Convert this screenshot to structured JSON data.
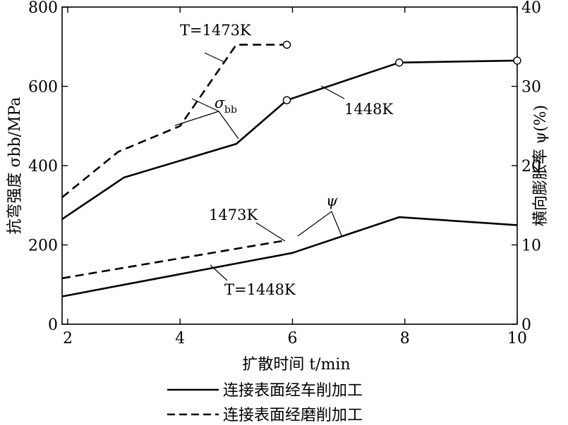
{
  "chart_data": {
    "type": "line",
    "title": "",
    "xlabel": "扩散时间 t/min",
    "ylabel_left": "抗弯强度 σbb/MPa",
    "ylabel_right": "横向膨胀率 ψ(%)",
    "xlim": [
      1.9,
      10
    ],
    "ylim_left": [
      0,
      800
    ],
    "ylim_right": [
      0,
      40
    ],
    "x_ticks": [
      2,
      4,
      6,
      8,
      10
    ],
    "y_ticks_left": [
      0,
      200,
      400,
      600,
      800
    ],
    "y_ticks_right": [
      0,
      10,
      20,
      30,
      40
    ],
    "grid": false,
    "legend_position": "bottom",
    "legend": [
      {
        "label": "连接表面经车削加工",
        "style": "solid"
      },
      {
        "label": "连接表面经磨削加工",
        "style": "dashed"
      }
    ],
    "series": [
      {
        "label": "T=1448K",
        "quantity": "σbb",
        "axis": "left",
        "style": "solid",
        "end_marker": "open-circle",
        "x": [
          1.9,
          3.0,
          5.0,
          5.9,
          7.9,
          10
        ],
        "y": [
          265,
          370,
          455,
          565,
          660,
          665
        ]
      },
      {
        "label": "T=1473K",
        "quantity": "σbb",
        "axis": "left",
        "style": "dashed",
        "end_marker": "open-circle",
        "x": [
          1.9,
          2.9,
          4.0,
          5.0,
          5.9
        ],
        "y": [
          320,
          435,
          500,
          705,
          705
        ]
      },
      {
        "label": "T=1448K",
        "quantity": "ψ",
        "axis": "right",
        "style": "solid",
        "x": [
          1.9,
          6.0,
          7.9,
          10
        ],
        "y": [
          3.5,
          9.0,
          13.5,
          12.5
        ]
      },
      {
        "label": "1473K",
        "quantity": "ψ",
        "axis": "right",
        "style": "dashed",
        "x": [
          1.9,
          5.9
        ],
        "y": [
          5.8,
          10.6
        ]
      }
    ],
    "annotations": {
      "t1473_sigma": "T=1473K",
      "sigma_sym": "σ",
      "sigma_sub": "bb",
      "t1448_sigma": "1448K",
      "t1473_psi": "1473K",
      "psi_sym": "ψ",
      "t1448_psi": "T=1448K"
    }
  }
}
